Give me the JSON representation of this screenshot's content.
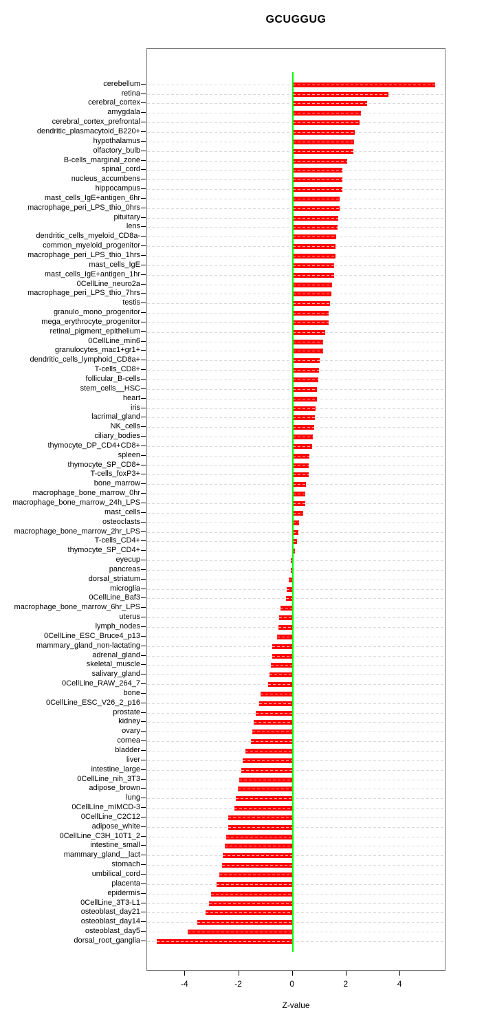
{
  "title": "GCUGGUG",
  "xlabel": "Z-value",
  "x_ticks": [
    -4,
    -2,
    0,
    2,
    4
  ],
  "colors": {
    "bar": "#ff0000",
    "zero_line": "#00ff00",
    "grid": "#d9d9d9",
    "box_border": "#777777"
  },
  "chart_data": {
    "type": "bar",
    "orientation": "horizontal",
    "title": "GCUGGUG",
    "xlabel": "Z-value",
    "xlim": [
      -5.4,
      5.7
    ],
    "grid": true,
    "zero_reference_line": true,
    "categories": [
      "cerebellum",
      "retina",
      "cerebral_cortex",
      "amygdala",
      "cerebral_cortex_prefrontal",
      "dendritic_plasmacytoid_B220+",
      "hypothalamus",
      "olfactory_bulb",
      "B-cells_marginal_zone",
      "spinal_cord",
      "nucleus_accumbens",
      "hippocampus",
      "mast_cells_IgE+antigen_6hr",
      "macrophage_peri_LPS_thio_0hrs",
      "pituitary",
      "lens",
      "dendritic_cells_myeloid_CD8a-",
      "common_myeloid_progenitor",
      "macrophage_peri_LPS_thio_1hrs",
      "mast_cells_IgE",
      "mast_cells_IgE+antigen_1hr",
      "0CellLine_neuro2a",
      "macrophage_peri_LPS_thio_7hrs",
      "testis",
      "granulo_mono_progenitor",
      "mega_erythrocyte_progenitor",
      "retinal_pigment_epithelium",
      "0CellLine_min6",
      "granulocytes_mac1+gr1+",
      "dendritic_cells_lymphoid_CD8a+",
      "T-cells_CD8+",
      "follicular_B-cells",
      "stem_cells__HSC",
      "heart",
      "iris",
      "lacrimal_gland",
      "NK_cells",
      "ciliary_bodies",
      "thymocyte_DP_CD4+CD8+",
      "spleen",
      "thymocyte_SP_CD8+",
      "T-cells_foxP3+",
      "bone_marrow",
      "macrophage_bone_marrow_0hr",
      "macrophage_bone_marrow_24h_LPS",
      "mast_cells",
      "osteoclasts",
      "macrophage_bone_marrow_2hr_LPS",
      "T-cells_CD4+",
      "thymocyte_SP_CD4+",
      "eyecup",
      "pancreas",
      "dorsal_striatum",
      "microglia",
      "0CellLine_Baf3",
      "macrophage_bone_marrow_6hr_LPS",
      "uterus",
      "lymph_nodes",
      "0CellLine_ESC_Bruce4_p13",
      "mammary_gland_non-lactating",
      "adrenal_gland",
      "skeletal_muscle",
      "salivary_gland",
      "0CellLine_RAW_264_7",
      "bone",
      "0CellLine_ESC_V26_2_p16",
      "prostate",
      "kidney",
      "ovary",
      "cornea",
      "bladder",
      "liver",
      "intestine_large",
      "0CellLine_nih_3T3",
      "adipose_brown",
      "lung",
      "0CellLIne_mIMCD-3",
      "0CellLine_C2C12",
      "adipose_white",
      "0CellLine_C3H_10T1_2",
      "intestine_small",
      "mammary_gland__lact",
      "stomach",
      "umbilical_cord",
      "placenta",
      "epidermis",
      "0CellLine_3T3-L1",
      "osteoblast_day21",
      "osteoblast_day14",
      "osteoblast_day5",
      "dorsal_root_ganglia"
    ],
    "values": [
      5.31,
      3.57,
      2.78,
      2.55,
      2.48,
      2.31,
      2.29,
      2.27,
      2.04,
      1.86,
      1.85,
      1.84,
      1.75,
      1.74,
      1.7,
      1.67,
      1.61,
      1.6,
      1.59,
      1.55,
      1.53,
      1.47,
      1.43,
      1.39,
      1.35,
      1.34,
      1.21,
      1.14,
      1.13,
      1.01,
      0.97,
      0.95,
      0.91,
      0.9,
      0.85,
      0.83,
      0.8,
      0.76,
      0.73,
      0.61,
      0.6,
      0.59,
      0.49,
      0.47,
      0.46,
      0.4,
      0.25,
      0.2,
      0.16,
      0.08,
      -0.06,
      -0.08,
      -0.14,
      -0.23,
      -0.26,
      -0.45,
      -0.5,
      -0.52,
      -0.58,
      -0.76,
      -0.77,
      -0.8,
      -0.85,
      -0.92,
      -1.2,
      -1.25,
      -1.38,
      -1.45,
      -1.5,
      -1.56,
      -1.75,
      -1.87,
      -1.9,
      -2.0,
      -2.03,
      -2.11,
      -2.16,
      -2.39,
      -2.4,
      -2.47,
      -2.53,
      -2.61,
      -2.62,
      -2.73,
      -2.84,
      -3.04,
      -3.12,
      -3.25,
      -3.55,
      -3.9,
      -5.05
    ]
  }
}
